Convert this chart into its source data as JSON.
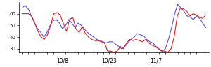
{
  "blue_y": [
    65,
    67,
    64,
    58,
    52,
    47,
    44,
    40,
    44,
    50,
    54,
    55,
    52,
    47,
    50,
    55,
    52,
    48,
    52,
    50,
    47,
    44,
    42,
    40,
    38,
    37,
    36,
    35,
    36,
    36,
    34,
    32,
    30,
    32,
    35,
    38,
    40,
    43,
    42,
    41,
    38,
    36,
    35,
    32,
    30,
    28,
    30,
    38,
    48,
    60,
    68,
    65,
    62,
    58,
    57,
    55,
    58,
    56,
    52,
    48
  ],
  "red_y": [
    60,
    60,
    60,
    58,
    52,
    45,
    40,
    38,
    42,
    50,
    60,
    61,
    59,
    52,
    45,
    55,
    57,
    47,
    44,
    49,
    43,
    40,
    38,
    37,
    37,
    36,
    35,
    28,
    28,
    27,
    28,
    32,
    30,
    35,
    38,
    37,
    38,
    37,
    36,
    38,
    35,
    33,
    32,
    30,
    28,
    28,
    27,
    30,
    40,
    58,
    65,
    64,
    62,
    58,
    60,
    59,
    57,
    56,
    59
  ],
  "ylim": [
    27,
    70
  ],
  "yticks": [
    30,
    40,
    50,
    60
  ],
  "n_xticks": 30,
  "xtick_label_positions": [
    13,
    28,
    43
  ],
  "xtick_labels": [
    "10/8",
    "10/23",
    "11/7"
  ],
  "blue_color": "#5555dd",
  "red_color": "#dd2222",
  "background_color": "#ffffff",
  "linewidth": 0.8
}
